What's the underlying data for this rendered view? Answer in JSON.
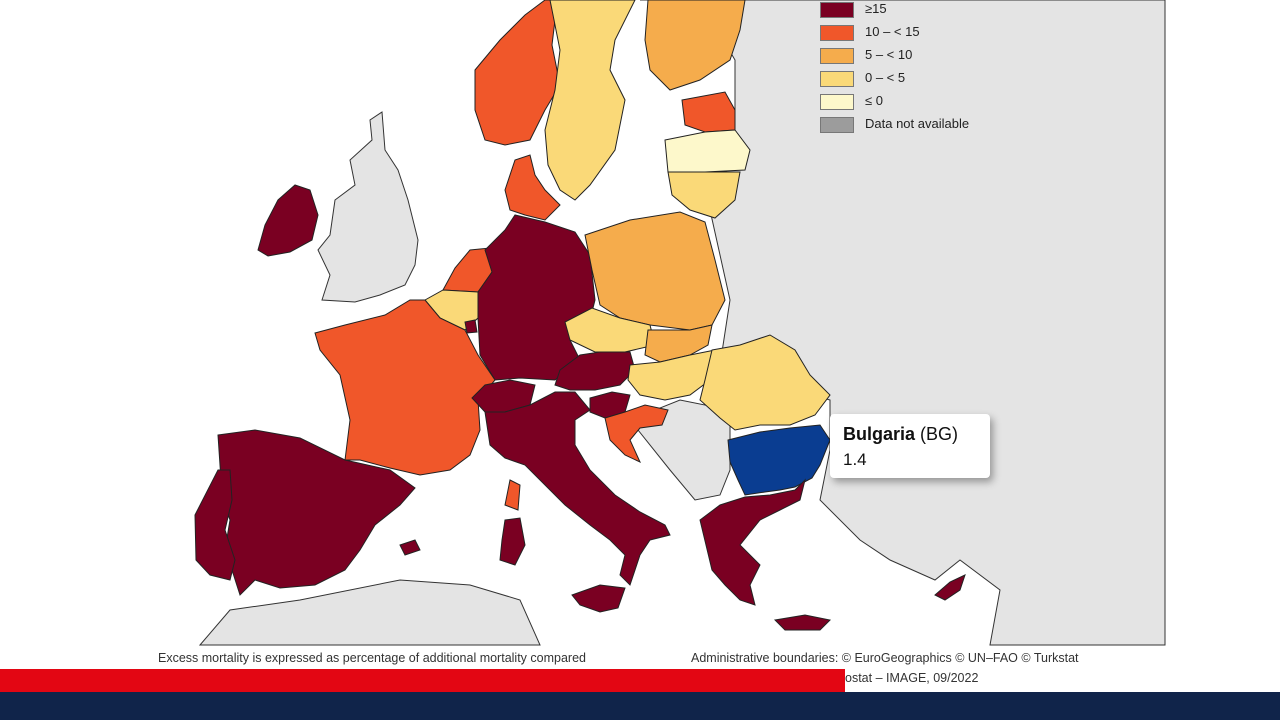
{
  "legend": [
    {
      "label": "≥15",
      "color": "#7a0022"
    },
    {
      "label": "10 – < 15",
      "color": "#f0572a"
    },
    {
      "label": "5 – < 10",
      "color": "#f5ac4c"
    },
    {
      "label": "0 – < 5",
      "color": "#fad978"
    },
    {
      "label": "≤ 0",
      "color": "#fdf8cb"
    },
    {
      "label": "Data not available",
      "color": "#9c9c9c"
    }
  ],
  "tooltip": {
    "country": "Bulgaria",
    "code": "(BG)",
    "value": "1.4"
  },
  "highlight_color": "#0a3d91",
  "captions": {
    "left": "Excess mortality is expressed as percentage of additional mortality compared",
    "right_line1": "Administrative boundaries: © EuroGeographics © UN–FAO © Turkstat",
    "right_line2": "ostat – IMAGE, 09/2022"
  },
  "colors": {
    "red_bar": "#e30613",
    "navy_bar": "#10244a",
    "non_eu": "#e4e4e4",
    "sea": "#ffffff"
  }
}
